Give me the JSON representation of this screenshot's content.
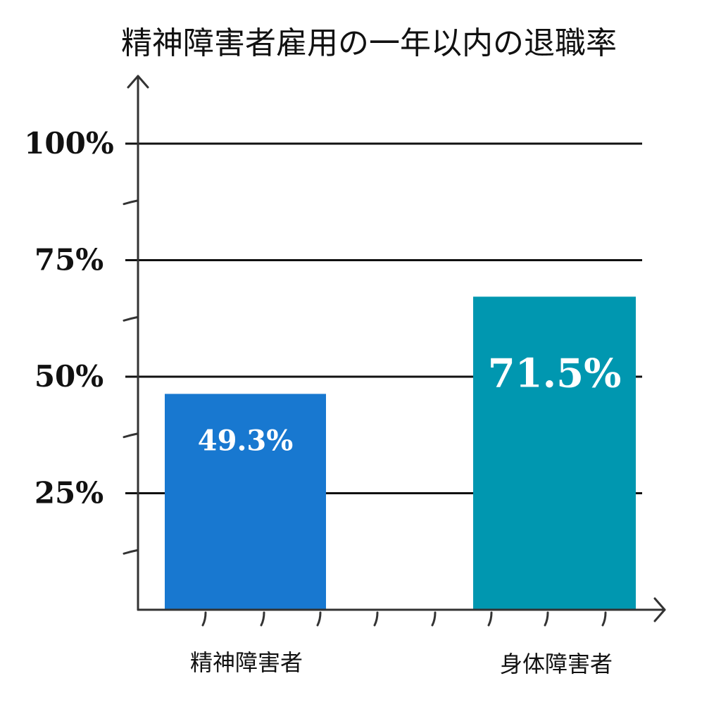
{
  "chart_data": {
    "type": "bar",
    "title": "精神障害者雇用の一年以内の退職率",
    "xlabel": "",
    "ylabel": "",
    "categories": [
      "精神障害者",
      "身体障害者"
    ],
    "values": [
      49.3,
      71.5
    ],
    "value_labels": [
      "49.3%",
      "71.5%"
    ],
    "yticks": [
      25,
      50,
      75,
      100
    ],
    "ytick_labels": [
      "25%",
      "50%",
      "75%",
      "100%"
    ],
    "ylim": [
      0,
      100
    ],
    "grid": true,
    "legend": "none",
    "colors": {
      "bars": [
        "#1878d0",
        "#0097b0"
      ],
      "grid": "#111111",
      "axis": "#333333",
      "text": "#111111",
      "value_text": "#ffffff"
    }
  }
}
